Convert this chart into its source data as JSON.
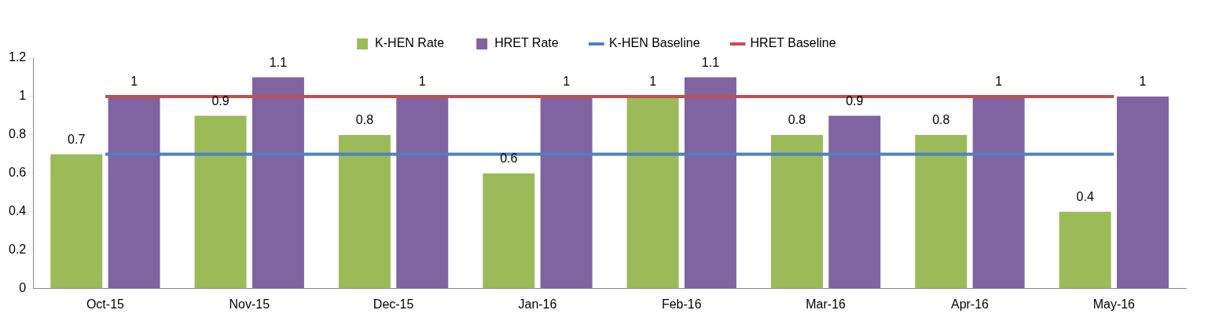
{
  "chart_data": {
    "type": "bar",
    "categories": [
      "Oct-15",
      "Nov-15",
      "Dec-15",
      "Jan-16",
      "Feb-16",
      "Mar-16",
      "Apr-16",
      "May-16"
    ],
    "series": [
      {
        "name": "K-HEN Rate",
        "color": "#9bbb59",
        "values": [
          0.7,
          0.9,
          0.8,
          0.6,
          1,
          0.8,
          0.8,
          0.4
        ],
        "value_labels": [
          "0.7",
          "0.9",
          "0.8",
          "0.6",
          "1",
          "0.8",
          "0.8",
          "0.4"
        ]
      },
      {
        "name": "HRET Rate",
        "color": "#8064a2",
        "values": [
          1,
          1.1,
          1,
          1,
          1.1,
          0.9,
          1,
          1
        ],
        "value_labels": [
          "1",
          "1.1",
          "1",
          "1",
          "1.1",
          "0.9",
          "1",
          "1"
        ]
      },
      {
        "name": "K-HEN Baseline",
        "type": "line",
        "color": "#4f81bd",
        "values": [
          0.7,
          0.7,
          0.7,
          0.7,
          0.7,
          0.7,
          0.7,
          0.7
        ]
      },
      {
        "name": "HRET Baseline",
        "type": "line",
        "color": "#c0504d",
        "values": [
          1,
          1,
          1,
          1,
          1,
          1,
          1,
          1
        ]
      }
    ],
    "ylim": [
      0,
      1.2
    ],
    "yticks": [
      0,
      0.2,
      0.4,
      0.6,
      0.8,
      1,
      1.2
    ],
    "grid": false,
    "legend": "top",
    "marker": "none"
  }
}
